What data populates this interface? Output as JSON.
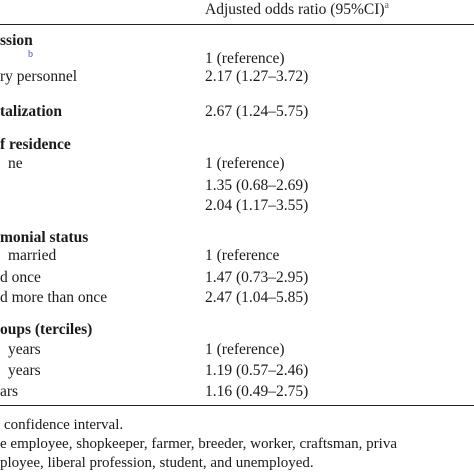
{
  "header": {
    "label": "Adjusted odds ratio (95%CI)",
    "sup": "a"
  },
  "rows": [
    {
      "label": "ssion",
      "bold": true
    },
    {
      "sup": "b",
      "value": "1 (reference)"
    },
    {
      "label": "ry personnel",
      "value": "2.17 (1.27–3.72)"
    },
    {
      "label": "talization",
      "bold": true,
      "value": "2.67 (1.24–5.75)"
    },
    {
      "label": "f residence",
      "bold": true
    },
    {
      "label": "ne",
      "value": "1 (reference)"
    },
    {
      "value": "1.35 (0.68–2.69)"
    },
    {
      "value": "2.04 (1.17–3.55)"
    },
    {
      "label": "monial status",
      "bold": true
    },
    {
      "label": "married",
      "value": "1 (reference"
    },
    {
      "label": "d once",
      "value": "1.47 (0.73–2.95)"
    },
    {
      "label": "d more than once",
      "value": "2.47 (1.04–5.85)"
    },
    {
      "label": "oups (terciles)",
      "bold": true
    },
    {
      "label": "years",
      "value": "1 (reference)"
    },
    {
      "label": "years",
      "value": "1.19 (0.57–2.46)"
    },
    {
      "label": "ars",
      "value": "1.16 (0.49–2.75)"
    }
  ],
  "footnotes": [
    "confidence interval.",
    "e employee, shopkeeper, farmer, breeder, worker, craftsman, priva",
    "ployee, liberal profession, student, and unemployed."
  ]
}
